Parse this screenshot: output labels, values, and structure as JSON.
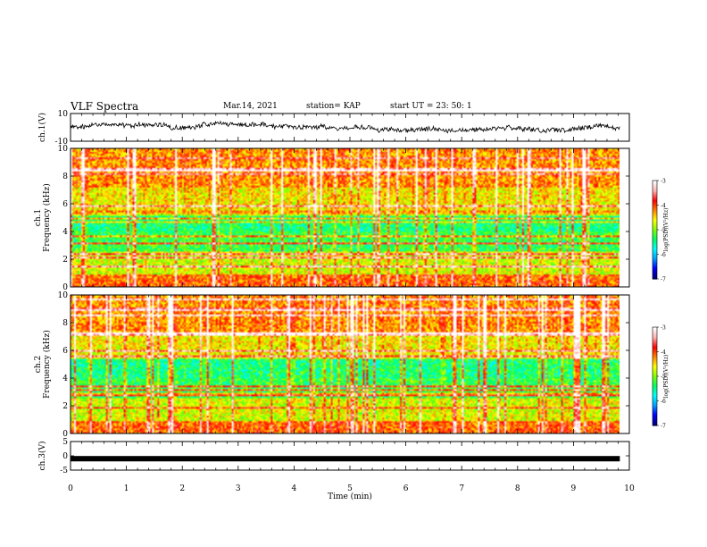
{
  "header": {
    "title": "VLF Spectra",
    "date": "Mar.14, 2021",
    "station": "station= KAP",
    "start": "start  UT  =   23: 50: 1"
  },
  "chart_data": [
    {
      "type": "line",
      "name": "ch1-waveform",
      "ylabel": "ch.1(V)",
      "ylim": [
        -10,
        10
      ],
      "yticks": [
        "10",
        "-10"
      ],
      "xlim": [
        0,
        10
      ],
      "x_end": 9.83,
      "description_values": {
        "mean": 0,
        "amplitude_range": [
          -6,
          6
        ]
      }
    },
    {
      "type": "heatmap",
      "name": "ch1-spectrogram",
      "ylabel": "ch.1\nFrequency (kHz)",
      "ylim": [
        0,
        10
      ],
      "yticks": [
        "0",
        "2",
        "4",
        "6",
        "8",
        "10"
      ],
      "xlim": [
        0,
        10
      ],
      "x_end": 9.83,
      "colorbar": {
        "label": "log(PSD)(V²/Hz)",
        "range": [
          -7,
          -3
        ],
        "ticks": [
          "-3",
          "-4",
          "-5",
          "-6",
          "-7"
        ]
      }
    },
    {
      "type": "heatmap",
      "name": "ch2-spectrogram",
      "ylabel": "ch.2\nFrequency (kHz)",
      "ylim": [
        0,
        10
      ],
      "yticks": [
        "0",
        "2",
        "4",
        "6",
        "8",
        "10"
      ],
      "xlim": [
        0,
        10
      ],
      "x_end": 9.83,
      "colorbar": {
        "label": "log(PSD)(V²/Hz)",
        "range": [
          -7,
          -3
        ],
        "ticks": [
          "-3",
          "-4",
          "-5",
          "-6",
          "-7"
        ]
      }
    },
    {
      "type": "line",
      "name": "ch3-waveform",
      "ylabel": "ch.3(V)",
      "ylim": [
        -5,
        5
      ],
      "yticks": [
        "5",
        "0",
        "-5"
      ],
      "xlim": [
        0,
        10
      ],
      "x_end": 9.83,
      "values": {
        "constant_y": -1
      }
    }
  ],
  "xaxis": {
    "label": "Time (min)",
    "ticks": [
      "0",
      "1",
      "2",
      "3",
      "4",
      "5",
      "6",
      "7",
      "8",
      "9",
      "10"
    ]
  },
  "colors": {
    "colormap": [
      "#000080",
      "#0000ff",
      "#00a0ff",
      "#00ffff",
      "#00ff60",
      "#80ff00",
      "#ffff00",
      "#ff8000",
      "#ff0000",
      "#ffb0b0",
      "#ffffff"
    ]
  }
}
